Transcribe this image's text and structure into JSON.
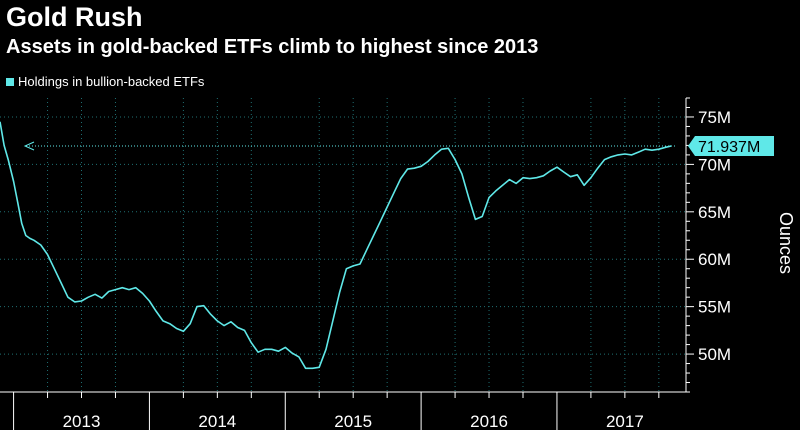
{
  "colors": {
    "background": "#000000",
    "line": "#5fe8e8",
    "grid": "#1f6f72",
    "axis_text": "#ffffff",
    "title": "#ffffff",
    "last_value_bg": "#5fe8e8",
    "last_value_text": "#000000"
  },
  "chart_data": {
    "type": "line",
    "title": "Gold Rush",
    "subtitle": "Assets in gold-backed ETFs climb to highest since 2013",
    "ylabel": "Ounces",
    "xlabel": "",
    "legend": [
      "Holdings in bullion-backed ETFs"
    ],
    "legend_position": "top-left",
    "grid": true,
    "ylim": [
      46,
      77
    ],
    "xlim": [
      2012.9,
      2017.95
    ],
    "y_ticks": [
      50,
      55,
      60,
      65,
      70,
      75
    ],
    "y_tick_labels": [
      "50M",
      "55M",
      "60M",
      "65M",
      "70M",
      "75M"
    ],
    "x_ticks": [
      2013,
      2014,
      2015,
      2016,
      2017
    ],
    "x_tick_labels": [
      "2013",
      "2014",
      "2015",
      "2016",
      "2017"
    ],
    "last_value_label": "71.937M",
    "last_value": 71.937,
    "series": [
      {
        "name": "Holdings in bullion-backed ETFs",
        "x": [
          2012.9,
          2012.93,
          2012.96,
          2013.0,
          2013.03,
          2013.06,
          2013.09,
          2013.12,
          2013.15,
          2013.2,
          2013.25,
          2013.3,
          2013.35,
          2013.4,
          2013.45,
          2013.5,
          2013.55,
          2013.6,
          2013.65,
          2013.7,
          2013.75,
          2013.8,
          2013.85,
          2013.9,
          2013.95,
          2014.0,
          2014.05,
          2014.1,
          2014.15,
          2014.2,
          2014.25,
          2014.3,
          2014.35,
          2014.4,
          2014.45,
          2014.5,
          2014.55,
          2014.6,
          2014.65,
          2014.7,
          2014.75,
          2014.8,
          2014.85,
          2014.9,
          2014.95,
          2015.0,
          2015.05,
          2015.1,
          2015.15,
          2015.2,
          2015.25,
          2015.3,
          2015.35,
          2015.4,
          2015.45,
          2015.5,
          2015.55,
          2015.6,
          2015.65,
          2015.7,
          2015.75,
          2015.8,
          2015.85,
          2015.9,
          2015.95,
          2016.0,
          2016.05,
          2016.1,
          2016.15,
          2016.2,
          2016.25,
          2016.3,
          2016.35,
          2016.4,
          2016.45,
          2016.5,
          2016.55,
          2016.6,
          2016.65,
          2016.7,
          2016.75,
          2016.8,
          2016.85,
          2016.9,
          2016.95,
          2017.0,
          2017.05,
          2017.1,
          2017.15,
          2017.2,
          2017.25,
          2017.3,
          2017.35,
          2017.4,
          2017.45,
          2017.5,
          2017.55,
          2017.6,
          2017.65,
          2017.7,
          2017.75,
          2017.8,
          2017.84
        ],
        "values": [
          74.5,
          72.0,
          70.5,
          68.2,
          66.0,
          63.8,
          62.5,
          62.2,
          62.0,
          61.5,
          60.5,
          59.0,
          57.5,
          56.0,
          55.5,
          55.6,
          56.0,
          56.3,
          55.9,
          56.6,
          56.8,
          57.0,
          56.8,
          57.0,
          56.4,
          55.6,
          54.5,
          53.5,
          53.2,
          52.7,
          52.4,
          53.2,
          55.0,
          55.1,
          54.2,
          53.5,
          53.0,
          53.4,
          52.8,
          52.5,
          51.2,
          50.2,
          50.5,
          50.5,
          50.3,
          50.7,
          50.1,
          49.7,
          48.5,
          48.5,
          48.6,
          50.5,
          53.5,
          56.5,
          59.0,
          59.3,
          59.5,
          61.0,
          62.5,
          64.0,
          65.5,
          67.0,
          68.5,
          69.5,
          69.6,
          69.8,
          70.3,
          71.0,
          71.6,
          71.7,
          70.5,
          69.0,
          66.5,
          64.2,
          64.5,
          66.5,
          67.2,
          67.8,
          68.4,
          68.0,
          68.6,
          68.5,
          68.6,
          68.8,
          69.3,
          69.7,
          69.2,
          68.7,
          68.9,
          67.8,
          68.6,
          69.6,
          70.5,
          70.8,
          71.0,
          71.1,
          71.0,
          71.3,
          71.6,
          71.5,
          71.6,
          71.8,
          71.937
        ]
      }
    ]
  }
}
